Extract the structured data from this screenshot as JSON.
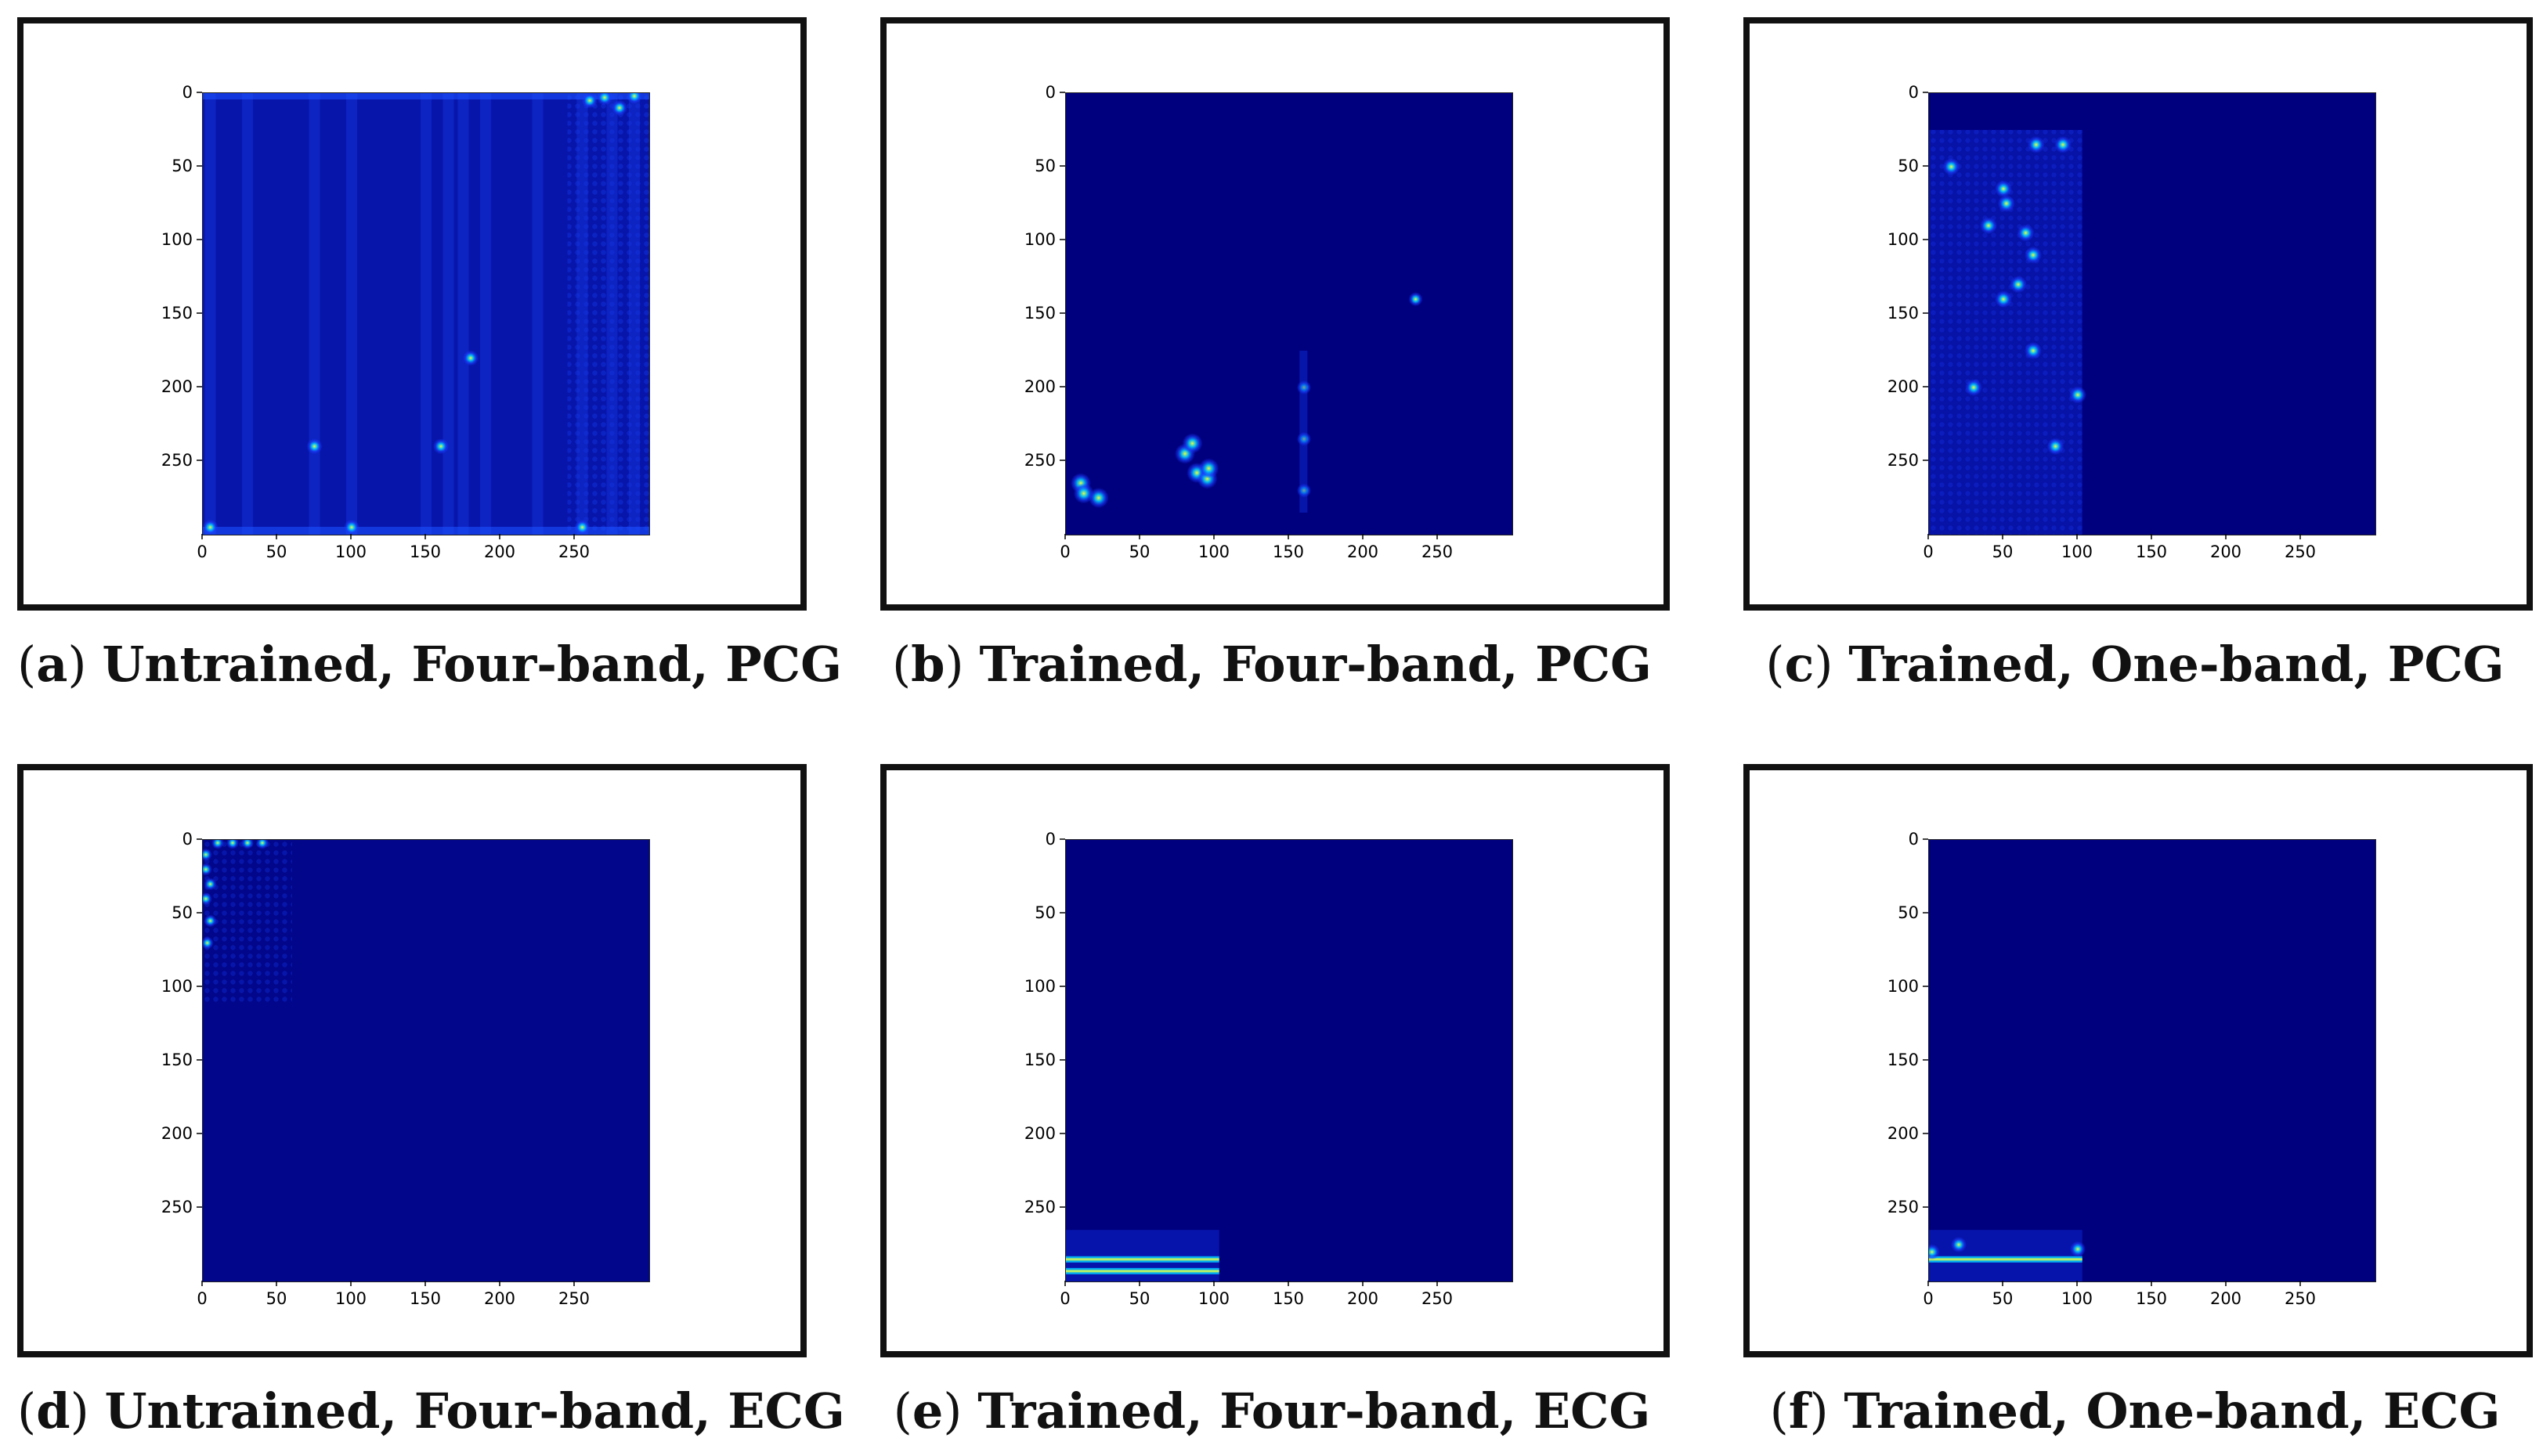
{
  "colors": {
    "background": "#00007f",
    "hot": "#1a3cff",
    "hotter": "#00c8ff",
    "peak": "#e8ff40"
  },
  "chart_data": [
    {
      "type": "heatmap",
      "label": "a",
      "title": "Untrained, Four-band, PCG",
      "x_ticks": [
        "0",
        "50",
        "100",
        "150",
        "200",
        "250"
      ],
      "y_ticks": [
        "0",
        "50",
        "100",
        "150",
        "200",
        "250"
      ],
      "xlim": [
        0,
        300
      ],
      "ylim": [
        0,
        300
      ],
      "colormap": "jet",
      "pattern": "untrained_pcg",
      "hot_columns_x": [
        5,
        30,
        75,
        100,
        150,
        165,
        175,
        190,
        225,
        255,
        275,
        290
      ],
      "hot_spots": [
        [
          260,
          5
        ],
        [
          270,
          3
        ],
        [
          280,
          10
        ],
        [
          290,
          2
        ],
        [
          5,
          295
        ],
        [
          100,
          295
        ],
        [
          255,
          295
        ],
        [
          75,
          240
        ],
        [
          160,
          240
        ],
        [
          180,
          180
        ]
      ]
    },
    {
      "type": "heatmap",
      "label": "b",
      "title": "Trained, Four-band, PCG",
      "x_ticks": [
        "0",
        "50",
        "100",
        "150",
        "200",
        "250"
      ],
      "y_ticks": [
        "0",
        "50",
        "100",
        "150",
        "200",
        "250"
      ],
      "xlim": [
        0,
        300
      ],
      "ylim": [
        0,
        300
      ],
      "colormap": "jet",
      "pattern": "trained_pcg_four",
      "hot_spots": [
        [
          10,
          265
        ],
        [
          12,
          272
        ],
        [
          22,
          275
        ],
        [
          80,
          245
        ],
        [
          85,
          238
        ],
        [
          88,
          258
        ],
        [
          95,
          262
        ],
        [
          96,
          255
        ],
        [
          160,
          200
        ],
        [
          160,
          235
        ],
        [
          160,
          270
        ],
        [
          235,
          140
        ]
      ]
    },
    {
      "type": "heatmap",
      "label": "c",
      "title": "Trained, One-band, PCG",
      "x_ticks": [
        "0",
        "50",
        "100",
        "150",
        "200",
        "250"
      ],
      "y_ticks": [
        "0",
        "50",
        "100",
        "150",
        "200",
        "250"
      ],
      "xlim": [
        0,
        300
      ],
      "ylim": [
        0,
        300
      ],
      "colormap": "jet",
      "pattern": "trained_pcg_one",
      "hot_spots": [
        [
          50,
          65
        ],
        [
          52,
          75
        ],
        [
          65,
          95
        ],
        [
          70,
          110
        ],
        [
          72,
          35
        ],
        [
          60,
          130
        ],
        [
          50,
          140
        ],
        [
          70,
          175
        ],
        [
          100,
          205
        ],
        [
          85,
          240
        ],
        [
          40,
          90
        ],
        [
          30,
          200
        ],
        [
          15,
          50
        ],
        [
          90,
          35
        ]
      ]
    },
    {
      "type": "heatmap",
      "label": "d",
      "title": "Untrained, Four-band, ECG",
      "x_ticks": [
        "0",
        "50",
        "100",
        "150",
        "200",
        "250"
      ],
      "y_ticks": [
        "0",
        "50",
        "100",
        "150",
        "200",
        "250"
      ],
      "xlim": [
        0,
        300
      ],
      "ylim": [
        0,
        300
      ],
      "colormap": "jet",
      "pattern": "untrained_ecg",
      "hot_spots": [
        [
          10,
          2
        ],
        [
          20,
          2
        ],
        [
          30,
          2
        ],
        [
          40,
          2
        ],
        [
          2,
          10
        ],
        [
          2,
          20
        ],
        [
          5,
          30
        ],
        [
          2,
          40
        ],
        [
          5,
          55
        ],
        [
          3,
          70
        ]
      ]
    },
    {
      "type": "heatmap",
      "label": "e",
      "title": "Trained, Four-band, ECG",
      "x_ticks": [
        "0",
        "50",
        "100",
        "150",
        "200",
        "250"
      ],
      "y_ticks": [
        "0",
        "50",
        "100",
        "150",
        "200",
        "250"
      ],
      "xlim": [
        0,
        300
      ],
      "ylim": [
        0,
        300
      ],
      "colormap": "jet",
      "pattern": "trained_ecg_four",
      "hot_rows_y": [
        285,
        293
      ],
      "hot_x_range": [
        0,
        103
      ]
    },
    {
      "type": "heatmap",
      "label": "f",
      "title": "Trained, One-band, ECG",
      "x_ticks": [
        "0",
        "50",
        "100",
        "150",
        "200",
        "250"
      ],
      "y_ticks": [
        "0",
        "50",
        "100",
        "150",
        "200",
        "250"
      ],
      "xlim": [
        0,
        300
      ],
      "ylim": [
        0,
        300
      ],
      "colormap": "jet",
      "pattern": "trained_ecg_one",
      "hot_rows_y": [
        285
      ],
      "hot_x_range": [
        0,
        103
      ],
      "hot_spots": [
        [
          2,
          280
        ],
        [
          100,
          278
        ],
        [
          20,
          275
        ]
      ]
    }
  ]
}
